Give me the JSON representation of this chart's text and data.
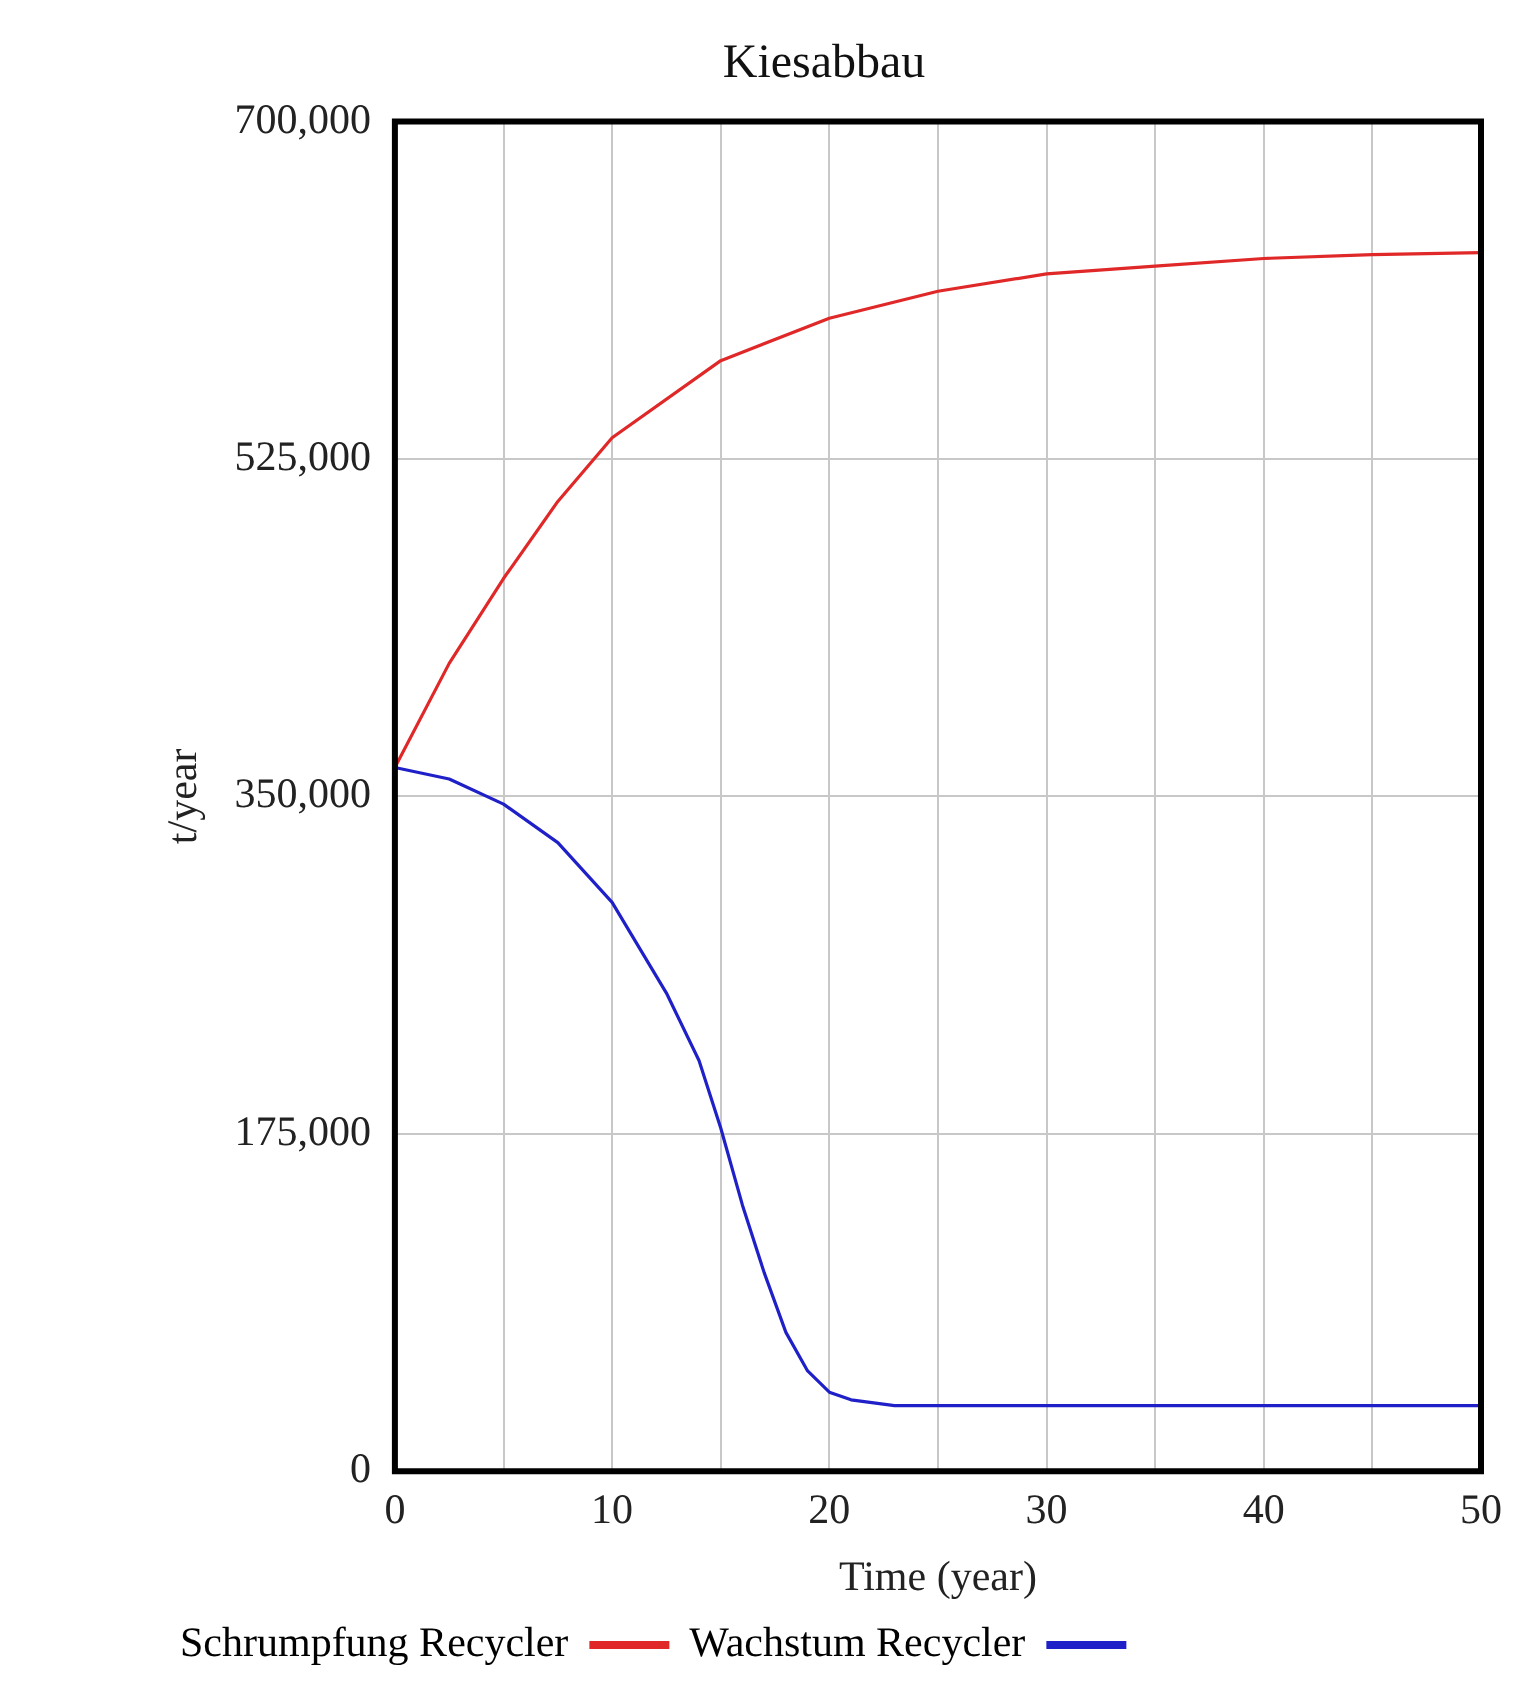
{
  "chart_data": {
    "type": "line",
    "title": "Kiesabbau",
    "xlabel": "Time (year)",
    "ylabel": "t/year",
    "xlim": [
      0,
      50
    ],
    "xticks": [
      0,
      {
        "value": 5,
        "label": null
      },
      10,
      {
        "value": 15,
        "label": null
      },
      20,
      {
        "value": 25,
        "label": null
      },
      30,
      {
        "value": 35,
        "label": null
      },
      40,
      {
        "value": 45,
        "label": null
      },
      50
    ],
    "ylim": [
      0,
      700000
    ],
    "yticks": [
      {
        "value": 0,
        "label": "0"
      },
      {
        "value": 175000,
        "label": "175,000"
      },
      {
        "value": 350000,
        "label": "350,000"
      },
      {
        "value": 525000,
        "label": "525,000"
      },
      {
        "value": 700000,
        "label": "700,000"
      }
    ],
    "grid": true,
    "legend": "bottom left",
    "marker": "none",
    "line_style": "solid",
    "series": [
      {
        "name": "Wachstum Recycler",
        "color": "#2020c8",
        "x": [
          0,
          2.5,
          5,
          7.5,
          10,
          12.5,
          14,
          15,
          16,
          17,
          18,
          19,
          20,
          21,
          23,
          30,
          40,
          50
        ],
        "values": [
          365000,
          359000,
          346000,
          326000,
          295000,
          248000,
          213000,
          178000,
          138000,
          103000,
          72000,
          52000,
          41000,
          37000,
          34000,
          34000,
          34000,
          34000
        ]
      },
      {
        "name": "Schrumpfung Recycler",
        "color": "#e02828",
        "x": [
          0,
          2.5,
          5,
          7.5,
          10,
          15,
          20,
          25,
          30,
          35,
          40,
          45,
          50
        ],
        "values": [
          365000,
          419000,
          463000,
          503000,
          536000,
          576000,
          598000,
          612000,
          621000,
          625000,
          629000,
          631000,
          632000
        ]
      }
    ]
  }
}
